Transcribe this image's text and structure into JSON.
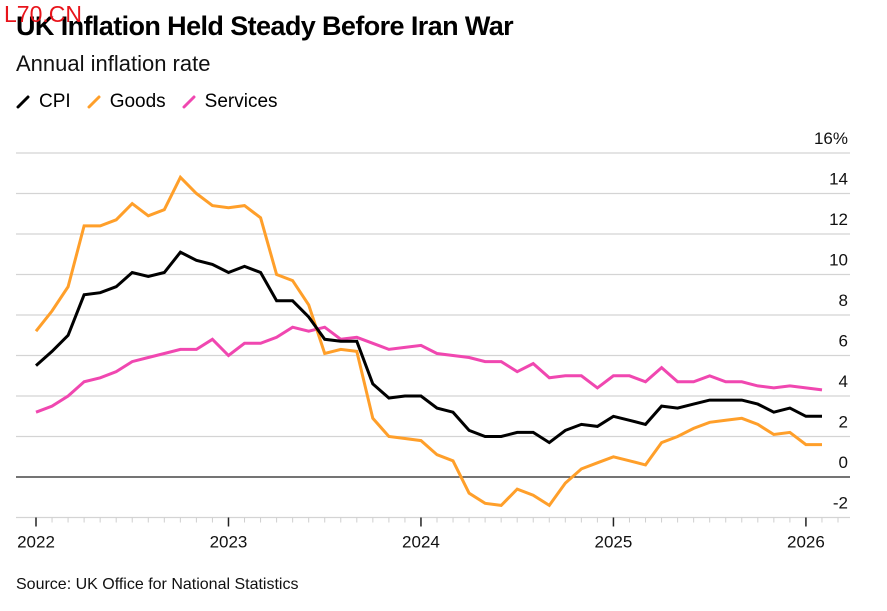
{
  "watermark": "L70.CN",
  "header": {
    "title": "UK Inflation Held Steady Before Iran War",
    "subtitle": "Annual inflation rate"
  },
  "footer": {
    "source": "Source: UK Office for National Statistics"
  },
  "chart_data": {
    "type": "line",
    "title": "UK Inflation Held Steady Before Iran War",
    "subtitle": "Annual inflation rate",
    "xlabel": "",
    "ylabel": "",
    "frequency": "monthly",
    "start": "2022-01",
    "x": [
      "2022-01",
      "2022-02",
      "2022-03",
      "2022-04",
      "2022-05",
      "2022-06",
      "2022-07",
      "2022-08",
      "2022-09",
      "2022-10",
      "2022-11",
      "2022-12",
      "2023-01",
      "2023-02",
      "2023-03",
      "2023-04",
      "2023-05",
      "2023-06",
      "2023-07",
      "2023-08",
      "2023-09",
      "2023-10",
      "2023-11",
      "2023-12",
      "2024-01",
      "2024-02",
      "2024-03",
      "2024-04",
      "2024-05",
      "2024-06",
      "2024-07",
      "2024-08",
      "2024-09",
      "2024-10",
      "2024-11",
      "2024-12",
      "2025-01",
      "2025-02",
      "2025-03",
      "2025-04",
      "2025-05",
      "2025-06",
      "2025-07",
      "2025-08",
      "2025-09",
      "2025-10",
      "2025-11",
      "2025-12",
      "2026-01",
      "2026-02"
    ],
    "series": [
      {
        "name": "CPI",
        "color": "#000000",
        "values": [
          5.5,
          6.2,
          7.0,
          9.0,
          9.1,
          9.4,
          10.1,
          9.9,
          10.1,
          11.1,
          10.7,
          10.5,
          10.1,
          10.4,
          10.1,
          8.7,
          8.7,
          7.9,
          6.8,
          6.7,
          6.7,
          4.6,
          3.9,
          4.0,
          4.0,
          3.4,
          3.2,
          2.3,
          2.0,
          2.0,
          2.2,
          2.2,
          1.7,
          2.3,
          2.6,
          2.5,
          3.0,
          2.8,
          2.6,
          3.5,
          3.4,
          3.6,
          3.8,
          3.8,
          3.8,
          3.6,
          3.2,
          3.4,
          3.0,
          3.0
        ]
      },
      {
        "name": "Goods",
        "color": "#ff9f2a",
        "values": [
          7.2,
          8.2,
          9.4,
          12.4,
          12.4,
          12.7,
          13.5,
          12.9,
          13.2,
          14.8,
          14.0,
          13.4,
          13.3,
          13.4,
          12.8,
          10.0,
          9.7,
          8.5,
          6.1,
          6.3,
          6.2,
          2.9,
          2.0,
          1.9,
          1.8,
          1.1,
          0.8,
          -0.8,
          -1.3,
          -1.4,
          -0.6,
          -0.9,
          -1.4,
          -0.3,
          0.4,
          0.7,
          1.0,
          0.8,
          0.6,
          1.7,
          2.0,
          2.4,
          2.7,
          2.8,
          2.9,
          2.6,
          2.1,
          2.2,
          1.6,
          1.6
        ]
      },
      {
        "name": "Services",
        "color": "#f047b0",
        "values": [
          3.2,
          3.5,
          4.0,
          4.7,
          4.9,
          5.2,
          5.7,
          5.9,
          6.1,
          6.3,
          6.3,
          6.8,
          6.0,
          6.6,
          6.6,
          6.9,
          7.4,
          7.2,
          7.4,
          6.8,
          6.9,
          6.6,
          6.3,
          6.4,
          6.5,
          6.1,
          6.0,
          5.9,
          5.7,
          5.7,
          5.2,
          5.6,
          4.9,
          5.0,
          5.0,
          4.4,
          5.0,
          5.0,
          4.7,
          5.4,
          4.7,
          4.7,
          5.0,
          4.7,
          4.7,
          4.5,
          4.4,
          4.5,
          4.4,
          4.3
        ]
      }
    ],
    "legend": [
      "CPI",
      "Goods",
      "Services"
    ],
    "legend_position": "top-left",
    "ylim": [
      -2,
      16
    ],
    "yticks": [
      16,
      14,
      12,
      10,
      8,
      6,
      4,
      2,
      0,
      -2
    ],
    "ytick_labels": [
      "16%",
      "14",
      "12",
      "10",
      "8",
      "6",
      "4",
      "2",
      "0",
      "-2"
    ],
    "yaxis_side": "right",
    "xticks": [
      "2022",
      "2023",
      "2024",
      "2025",
      "2026"
    ],
    "grid": true,
    "zero_line": true
  }
}
